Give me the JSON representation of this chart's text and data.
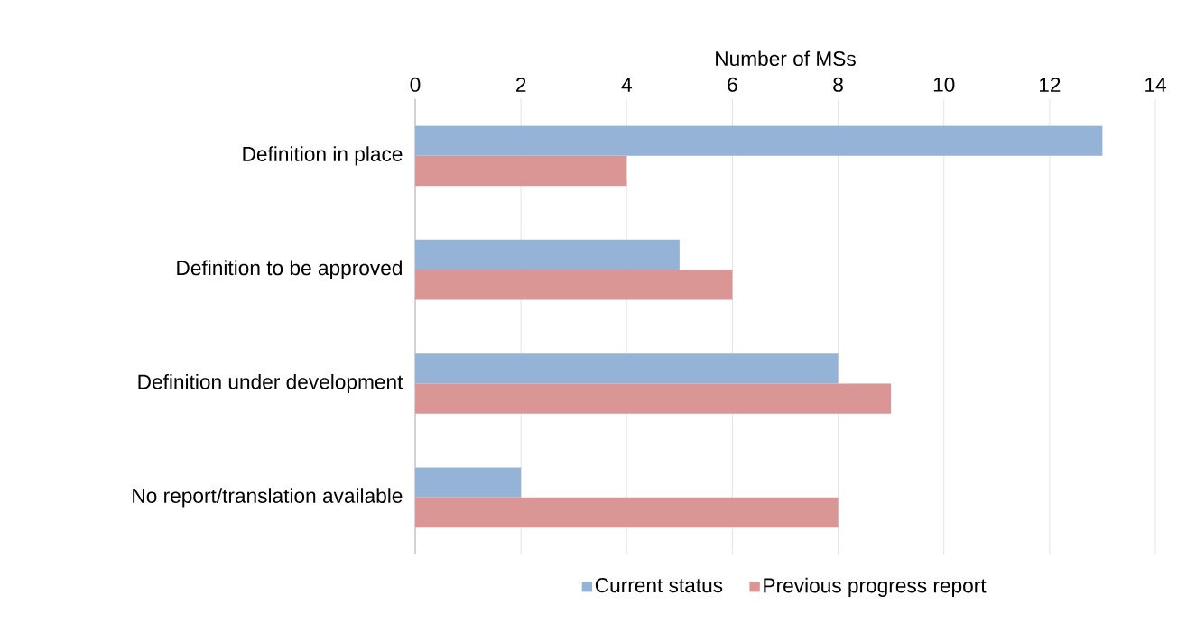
{
  "chart_data": {
    "type": "bar",
    "orientation": "horizontal",
    "xlabel": "Number of MSs",
    "categories": [
      "Definition in place",
      "Definition to be approved",
      "Definition under development",
      "No report/translation available"
    ],
    "series": [
      {
        "name": "Current status",
        "color": "#95b3d7",
        "values": [
          13,
          5,
          8,
          2
        ]
      },
      {
        "name": "Previous progress report",
        "color": "#d99694",
        "values": [
          4,
          6,
          9,
          8
        ]
      }
    ],
    "xlim": [
      0,
      14
    ],
    "xticks": [
      0,
      2,
      4,
      6,
      8,
      10,
      12,
      14
    ],
    "grid": "x",
    "legend": "bottom"
  }
}
